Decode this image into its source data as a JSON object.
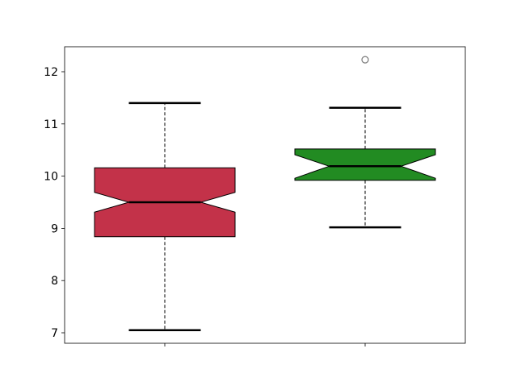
{
  "chart_data": {
    "type": "boxplot",
    "notched": true,
    "title": "",
    "xlabel": "",
    "ylabel": "",
    "ylim": [
      6.8,
      12.5
    ],
    "yticks": [
      "7",
      "8",
      "9",
      "10",
      "11",
      "12"
    ],
    "xtick_labels": [
      "",
      ""
    ],
    "grid": false,
    "boxes": [
      {
        "color": "#c33249",
        "whisker_low": 7.05,
        "q1": 8.84,
        "notch_low": 9.31,
        "median": 9.5,
        "notch_high": 9.69,
        "q3": 10.16,
        "whisker_high": 11.4,
        "outliers": []
      },
      {
        "color": "#228b22",
        "whisker_low": 9.02,
        "q1": 9.92,
        "notch_low": 9.96,
        "median": 10.19,
        "notch_high": 10.41,
        "q3": 10.52,
        "whisker_high": 11.31,
        "outliers": [
          12.23
        ]
      }
    ]
  }
}
